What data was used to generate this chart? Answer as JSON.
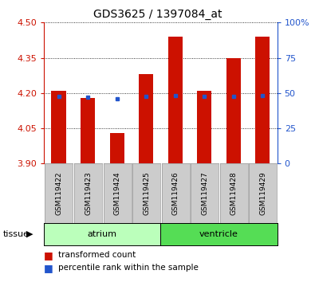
{
  "title": "GDS3625 / 1397084_at",
  "samples": [
    "GSM119422",
    "GSM119423",
    "GSM119424",
    "GSM119425",
    "GSM119426",
    "GSM119427",
    "GSM119428",
    "GSM119429"
  ],
  "bar_bottoms": 3.9,
  "bar_tops": [
    4.21,
    4.18,
    4.03,
    4.28,
    4.44,
    4.21,
    4.35,
    4.44
  ],
  "blue_y": [
    4.185,
    4.182,
    4.175,
    4.185,
    4.188,
    4.185,
    4.185,
    4.188
  ],
  "ylim_left": [
    3.9,
    4.5
  ],
  "ylim_right": [
    0,
    100
  ],
  "yticks_left": [
    3.9,
    4.05,
    4.2,
    4.35,
    4.5
  ],
  "yticks_right": [
    0,
    25,
    50,
    75,
    100
  ],
  "ytick_labels_right": [
    "0",
    "25",
    "50",
    "75",
    "100%"
  ],
  "bar_color": "#cc1100",
  "blue_color": "#2255cc",
  "atrium_color": "#bbffbb",
  "ventricle_color": "#55dd55",
  "sample_box_color": "#cccccc",
  "tissue_groups": [
    {
      "label": "atrium",
      "start": 0,
      "end": 3,
      "color": "#bbffbb"
    },
    {
      "label": "ventricle",
      "start": 4,
      "end": 7,
      "color": "#55dd55"
    }
  ],
  "legend_items": [
    {
      "label": "transformed count",
      "color": "#cc1100"
    },
    {
      "label": "percentile rank within the sample",
      "color": "#2255cc"
    }
  ],
  "bar_width": 0.5
}
